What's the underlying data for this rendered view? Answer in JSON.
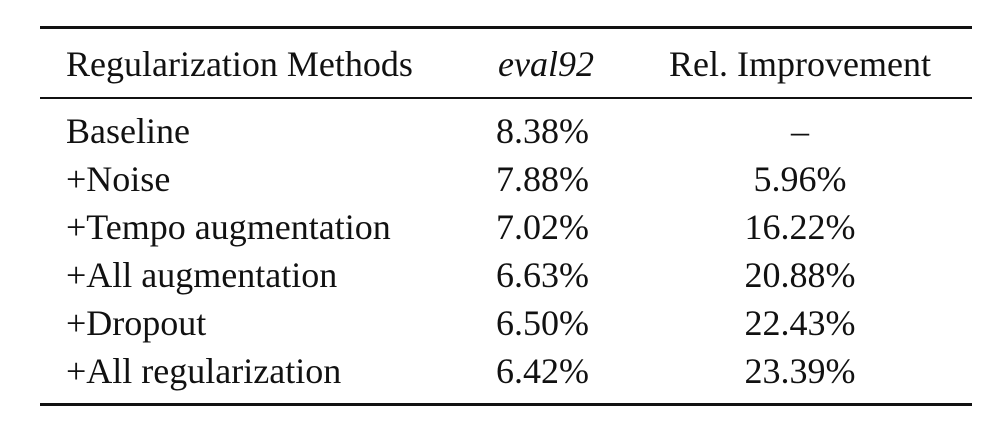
{
  "table": {
    "headers": {
      "method": "Regularization Methods",
      "eval": "eval92",
      "rel": "Rel. Improvement"
    },
    "rows": [
      {
        "method": "Baseline",
        "eval": "8.38%",
        "rel": "–"
      },
      {
        "method": "+Noise",
        "eval": "7.88%",
        "rel": "5.96%"
      },
      {
        "method": "+Tempo augmentation",
        "eval": "7.02%",
        "rel": "16.22%"
      },
      {
        "method": "+All augmentation",
        "eval": "6.63%",
        "rel": "20.88%"
      },
      {
        "method": "+Dropout",
        "eval": "6.50%",
        "rel": "22.43%"
      },
      {
        "method": "+All regularization",
        "eval": "6.42%",
        "rel": "23.39%"
      }
    ]
  }
}
